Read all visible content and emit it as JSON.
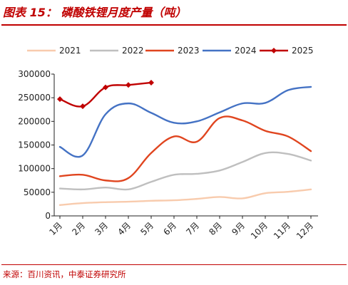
{
  "title": "图表 15：  磷酸铁锂月度产量（吨）",
  "source": "来源：百川资讯，中泰证券研究所",
  "chart_data": {
    "type": "line",
    "categories": [
      "1月",
      "2月",
      "3月",
      "4月",
      "5月",
      "6月",
      "7月",
      "8月",
      "9月",
      "10月",
      "11月",
      "12月"
    ],
    "ylim": [
      0,
      300000
    ],
    "yticks": [
      0,
      50000,
      100000,
      150000,
      200000,
      250000,
      300000
    ],
    "ytick_labels": [
      "0",
      "50000",
      "100000",
      "150000",
      "200000",
      "250000",
      "300000"
    ],
    "grid": false,
    "legend_position": "top",
    "series": [
      {
        "name": "2021",
        "color": "#f8cbad",
        "marker": false,
        "values": [
          23000,
          27000,
          29000,
          30000,
          32000,
          33000,
          36000,
          40000,
          37000,
          48000,
          51000,
          56000
        ]
      },
      {
        "name": "2022",
        "color": "#bfbfbf",
        "marker": false,
        "values": [
          58000,
          56000,
          60000,
          56000,
          72000,
          87000,
          89000,
          96000,
          114000,
          133000,
          131000,
          117000
        ]
      },
      {
        "name": "2023",
        "color": "#e0451f",
        "marker": false,
        "values": [
          84000,
          87000,
          75000,
          80000,
          133000,
          168000,
          157000,
          207000,
          202000,
          180000,
          168000,
          137000
        ]
      },
      {
        "name": "2024",
        "color": "#4472c4",
        "marker": false,
        "values": [
          146000,
          128000,
          215000,
          238000,
          218000,
          197000,
          200000,
          219000,
          238000,
          239000,
          266000,
          273000
        ]
      },
      {
        "name": "2025",
        "color": "#c00000",
        "marker": true,
        "values": [
          247000,
          232000,
          272000,
          277000,
          282000,
          null,
          null,
          null,
          null,
          null,
          null,
          null
        ]
      }
    ]
  }
}
